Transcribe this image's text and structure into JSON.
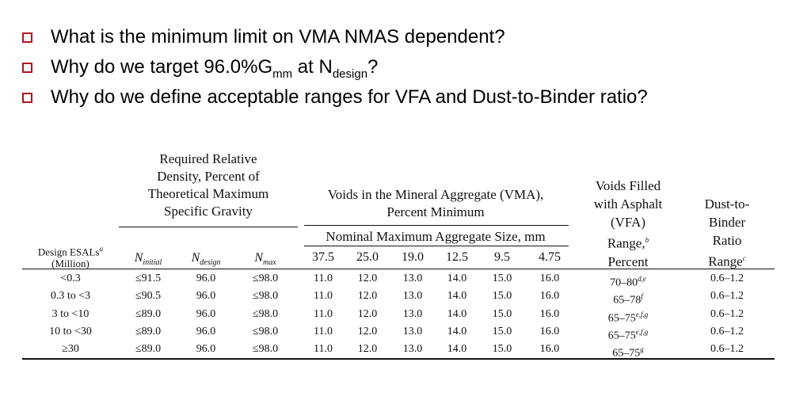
{
  "bullets": [
    {
      "text": "What is the minimum limit on VMA NMAS dependent?"
    },
    {
      "pre": "Why do we target 96.0%G",
      "sub1": "mm",
      "mid": " at N",
      "sub2": "design",
      "post": "?"
    },
    {
      "text": "Why do we define acceptable ranges for VFA and Dust-to-Binder ratio?"
    }
  ],
  "table": {
    "head": {
      "density": [
        "Required Relative",
        "Density, Percent of",
        "Theoretical Maximum",
        "Specific Gravity"
      ],
      "vma": [
        "Voids in the Mineral Aggregate (VMA),",
        "Percent Minimum"
      ],
      "nmas": "Nominal Maximum Aggregate Size, mm",
      "vfa": [
        "Voids Filled",
        "with Asphalt",
        "(VFA)",
        "Range,",
        "Percent"
      ],
      "vfa_sup": "b",
      "dust": [
        "Dust-to-",
        "Binder",
        "Ratio",
        "Range"
      ],
      "dust_sup": "c",
      "esal": [
        "Design ESALs",
        "(Million)"
      ],
      "esal_sup": "a",
      "n_initial": {
        "n": "N",
        "sub": "initial"
      },
      "n_design": {
        "n": "N",
        "sub": "design"
      },
      "n_max": {
        "n": "N",
        "sub": "max"
      },
      "sizes": [
        "37.5",
        "25.0",
        "19.0",
        "12.5",
        "9.5",
        "4.75"
      ]
    },
    "rows": [
      {
        "esal": "<0.3",
        "ni": "≤91.5",
        "nd": "96.0",
        "nm": "≤98.0",
        "vma": [
          "11.0",
          "12.0",
          "13.0",
          "14.0",
          "15.0",
          "16.0"
        ],
        "vfa": "70–80",
        "vfa_sup": "d,e",
        "dust": "0.6–1.2"
      },
      {
        "esal": "0.3 to <3",
        "ni": "≤90.5",
        "nd": "96.0",
        "nm": "≤98.0",
        "vma": [
          "11.0",
          "12.0",
          "13.0",
          "14.0",
          "15.0",
          "16.0"
        ],
        "vfa": "65–78",
        "vfa_sup": "f",
        "dust": "0.6–1.2"
      },
      {
        "esal": "3 to <10",
        "ni": "≤89.0",
        "nd": "96.0",
        "nm": "≤98.0",
        "vma": [
          "11.0",
          "12.0",
          "13.0",
          "14.0",
          "15.0",
          "16.0"
        ],
        "vfa": "65–75",
        "vfa_sup": "e,f,g",
        "dust": "0.6–1.2"
      },
      {
        "esal": "10 to <30",
        "ni": "≤89.0",
        "nd": "96.0",
        "nm": "≤98.0",
        "vma": [
          "11.0",
          "12.0",
          "13.0",
          "14.0",
          "15.0",
          "16.0"
        ],
        "vfa": "65–75",
        "vfa_sup": "e,f,g",
        "dust": "0.6–1.2"
      },
      {
        "esal": "≥30",
        "ni": "≤89.0",
        "nd": "96.0",
        "nm": "≤98.0",
        "vma": [
          "11.0",
          "12.0",
          "13.0",
          "14.0",
          "15.0",
          "16.0"
        ],
        "vfa": "65–75",
        "vfa_sup": "g",
        "dust": "0.6–1.2"
      }
    ]
  },
  "colors": {
    "bullet": "#b0121b",
    "text": "#000000",
    "rule": "#111111"
  }
}
